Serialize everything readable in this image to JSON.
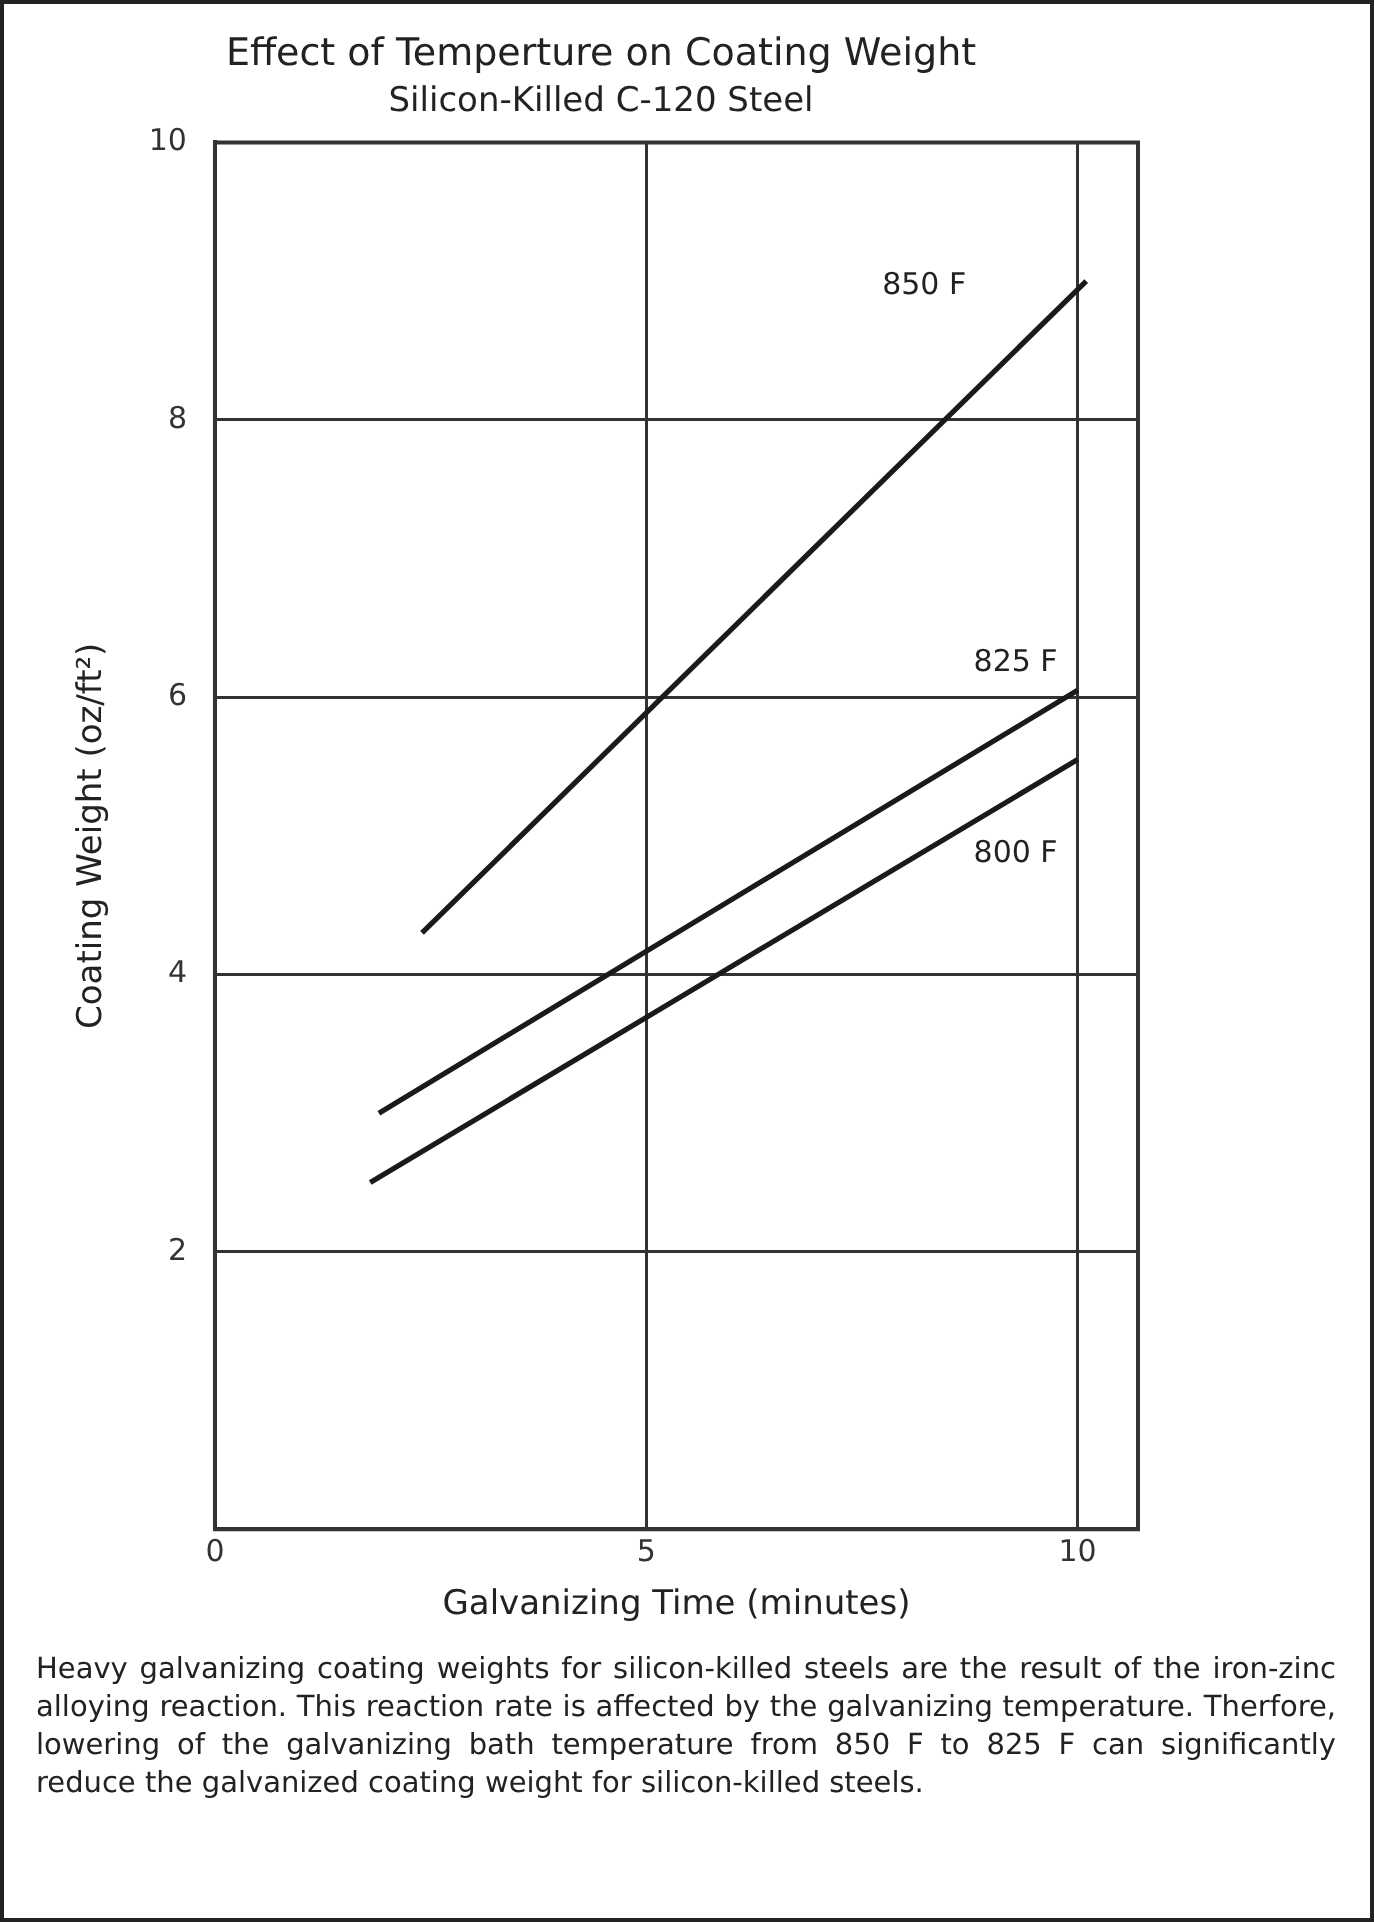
{
  "chart_data": {
    "type": "line",
    "title": "Effect of Temperture on Coating Weight",
    "subtitle": "Silicon-Killed C-120 Steel",
    "xlabel": "Galvanizing Time (minutes)",
    "ylabel": "Coating Weight (oz/ft²)",
    "xlim": [
      0,
      10.7
    ],
    "xticks": [
      0,
      5,
      10
    ],
    "ylim": [
      0,
      10
    ],
    "yticks": [
      {
        "value": 0,
        "label": null
      },
      2,
      4,
      6,
      8,
      10
    ],
    "grid": true,
    "legend": false,
    "marker": "none",
    "line_style": "solid",
    "series": [
      {
        "name": "850 F",
        "color": "#1a1a1a",
        "x": [
          2.4,
          10.1
        ],
        "values": [
          4.3,
          9.0
        ]
      },
      {
        "name": "825 F",
        "color": "#1a1a1a",
        "x": [
          1.9,
          10
        ],
        "values": [
          3.0,
          6.05
        ]
      },
      {
        "name": "800 F",
        "color": "#1a1a1a",
        "x": [
          1.8,
          10
        ],
        "values": [
          2.5,
          5.55
        ]
      }
    ],
    "annotations": [
      "Heavy galvanizing coating weights for silicon-killed steels are the result of the iron-zinc alloying reaction. This reaction rate is affected by the galvanizing temperature. Therfore, lowering of the galvanizing bath temperature from 850 F to 825 F can significantly reduce the galvanized coating weight for silicon-killed steels."
    ]
  }
}
